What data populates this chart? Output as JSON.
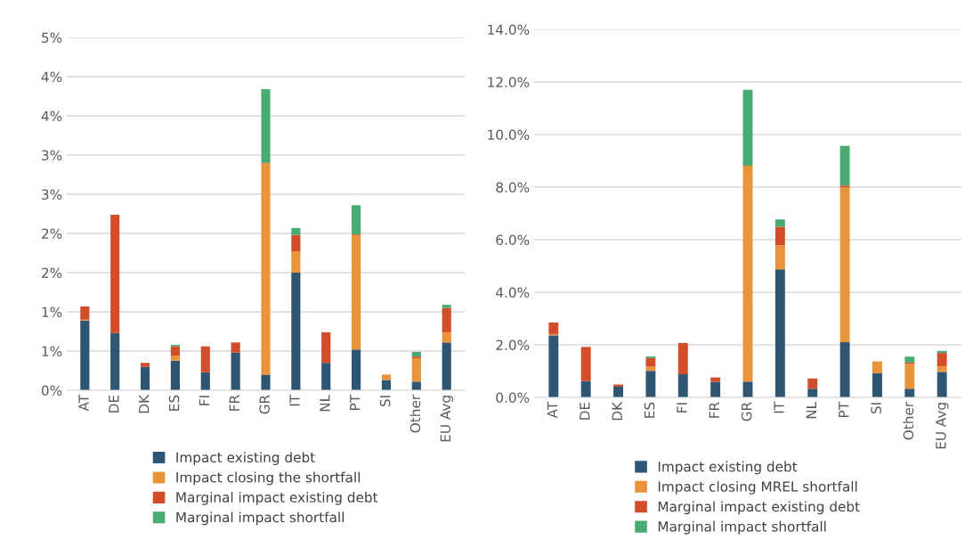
{
  "chart_data": [
    {
      "type": "bar",
      "stacked": true,
      "grid": "y",
      "legend": "bottom",
      "categories": [
        "AT",
        "DE",
        "DK",
        "ES",
        "FI",
        "FR",
        "GR",
        "IT",
        "NL",
        "PT",
        "SI",
        "Other",
        "EU Avg"
      ],
      "ylim": [
        0,
        4.5
      ],
      "yticks": [
        {
          "value": 0,
          "label": "0%"
        },
        {
          "value": 0.5,
          "label": "1%"
        },
        {
          "value": 1.0,
          "label": "1%"
        },
        {
          "value": 1.5,
          "label": "2%"
        },
        {
          "value": 2.0,
          "label": "2%"
        },
        {
          "value": 2.5,
          "label": "3%"
        },
        {
          "value": 3.0,
          "label": "3%"
        },
        {
          "value": 3.5,
          "label": "4%"
        },
        {
          "value": 4.0,
          "label": "4%"
        },
        {
          "value": 4.5,
          "label": "5%"
        }
      ],
      "series": [
        {
          "name": "Impact existing debt",
          "color": "#2e5673",
          "values": [
            0.89,
            0.73,
            0.3,
            0.38,
            0.23,
            0.48,
            0.2,
            1.5,
            0.35,
            0.52,
            0.13,
            0.11,
            0.61
          ]
        },
        {
          "name": "Impact closing the shortfall",
          "color": "#e9943a",
          "values": [
            0.01,
            0,
            0,
            0.06,
            0,
            0,
            2.7,
            0.27,
            0,
            1.46,
            0.07,
            0.3,
            0.13
          ]
        },
        {
          "name": "Marginal impact existing debt",
          "color": "#d24d2a",
          "values": [
            0.17,
            1.51,
            0.05,
            0.12,
            0.33,
            0.13,
            0,
            0.21,
            0.39,
            0.01,
            0,
            0.02,
            0.31
          ]
        },
        {
          "name": "Marginal impact shortfall",
          "color": "#4aab72",
          "values": [
            0,
            0,
            0,
            0.02,
            0,
            0,
            0.94,
            0.09,
            0,
            0.37,
            0,
            0.06,
            0.04
          ]
        }
      ]
    },
    {
      "type": "bar",
      "stacked": true,
      "grid": "y",
      "legend": "bottom",
      "categories": [
        "AT",
        "DE",
        "DK",
        "ES",
        "FI",
        "FR",
        "GR",
        "IT",
        "NL",
        "PT",
        "SI",
        "Other",
        "EU Avg"
      ],
      "ylim": [
        0,
        14
      ],
      "yticks": [
        {
          "value": 0,
          "label": "0.0%"
        },
        {
          "value": 2,
          "label": "2.0%"
        },
        {
          "value": 4,
          "label": "4.0%"
        },
        {
          "value": 6,
          "label": "6.0%"
        },
        {
          "value": 8,
          "label": "8.0%"
        },
        {
          "value": 10,
          "label": "10.0%"
        },
        {
          "value": 12,
          "label": "12.0%"
        },
        {
          "value": 14,
          "label": "14.0%"
        }
      ],
      "series": [
        {
          "name": "Impact existing debt",
          "color": "#2e5673",
          "values": [
            2.36,
            0.62,
            0.41,
            1.01,
            0.88,
            0.59,
            0.6,
            4.87,
            0.33,
            2.1,
            0.92,
            0.33,
            0.97
          ]
        },
        {
          "name": "Impact closing MREL shortfall",
          "color": "#e9943a",
          "values": [
            0.05,
            0,
            0,
            0.16,
            0,
            0,
            8.21,
            0.92,
            0,
            5.89,
            0.45,
            0.94,
            0.22
          ]
        },
        {
          "name": "Marginal impact existing debt",
          "color": "#d24d2a",
          "values": [
            0.44,
            1.3,
            0.08,
            0.33,
            1.19,
            0.17,
            0,
            0.7,
            0.39,
            0.07,
            0,
            0.06,
            0.5
          ]
        },
        {
          "name": "Marginal impact shortfall",
          "color": "#4aab72",
          "values": [
            0,
            0,
            0,
            0.06,
            0,
            0,
            2.89,
            0.28,
            0,
            1.51,
            0,
            0.22,
            0.08
          ]
        }
      ]
    }
  ]
}
